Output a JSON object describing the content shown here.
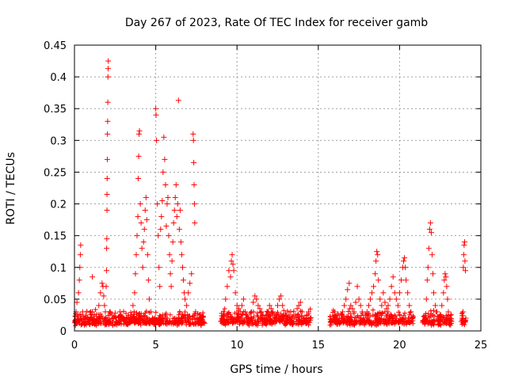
{
  "chart_data": {
    "type": "scatter",
    "title": "Day 267 of 2023, Rate Of TEC Index for receiver gamb",
    "xlabel": "GPS time / hours",
    "ylabel": "ROTI / TECUs",
    "xlim": [
      0,
      25
    ],
    "ylim": [
      0,
      0.45
    ],
    "xticks": [
      "0",
      "5",
      "10",
      "15",
      "20",
      "25"
    ],
    "yticks": [
      "0",
      "0.05",
      "0.1",
      "0.15",
      "0.2",
      "0.25",
      "0.3",
      "0.35",
      "0.4",
      "0.45"
    ],
    "grid": true,
    "legend": "none",
    "marker": "plus",
    "color": "#ff0000",
    "series": [
      {
        "points": [
          [
            0.05,
            0.015
          ],
          [
            0.1,
            0.03
          ],
          [
            0.15,
            0.045
          ],
          [
            0.2,
            0.025
          ],
          [
            0.25,
            0.06
          ],
          [
            0.3,
            0.08
          ],
          [
            0.33,
            0.1
          ],
          [
            0.36,
            0.12
          ],
          [
            0.38,
            0.135
          ],
          [
            0.42,
            0.02
          ],
          [
            0.5,
            0.03
          ],
          [
            0.6,
            0.015
          ],
          [
            0.7,
            0.025
          ],
          [
            0.8,
            0.02
          ],
          [
            0.9,
            0.018
          ],
          [
            1.0,
            0.022
          ],
          [
            1.1,
            0.03
          ],
          [
            1.2,
            0.025
          ],
          [
            1.3,
            0.015
          ],
          [
            1.1,
            0.085
          ],
          [
            1.5,
            0.04
          ],
          [
            1.6,
            0.06
          ],
          [
            1.7,
            0.075
          ],
          [
            1.75,
            0.07
          ],
          [
            1.8,
            0.055
          ],
          [
            1.85,
            0.04
          ],
          [
            1.9,
            0.03
          ],
          [
            1.95,
            0.07
          ],
          [
            1.97,
            0.095
          ],
          [
            1.98,
            0.13
          ],
          [
            1.99,
            0.145
          ],
          [
            2.0,
            0.19
          ],
          [
            2.0,
            0.215
          ],
          [
            2.01,
            0.24
          ],
          [
            2.02,
            0.27
          ],
          [
            2.03,
            0.31
          ],
          [
            2.04,
            0.33
          ],
          [
            2.05,
            0.36
          ],
          [
            2.06,
            0.4
          ],
          [
            2.07,
            0.413
          ],
          [
            2.08,
            0.425
          ],
          [
            2.2,
            0.03
          ],
          [
            2.3,
            0.025
          ],
          [
            2.4,
            0.02
          ],
          [
            2.5,
            0.028
          ],
          [
            2.6,
            0.015
          ],
          [
            2.7,
            0.022
          ],
          [
            2.8,
            0.03
          ],
          [
            2.9,
            0.02
          ],
          [
            3.0,
            0.018
          ],
          [
            3.1,
            0.015
          ],
          [
            3.2,
            0.02
          ],
          [
            3.3,
            0.022
          ],
          [
            3.4,
            0.015
          ],
          [
            3.5,
            0.025
          ],
          [
            3.6,
            0.04
          ],
          [
            3.7,
            0.06
          ],
          [
            3.75,
            0.09
          ],
          [
            3.8,
            0.12
          ],
          [
            3.85,
            0.15
          ],
          [
            3.9,
            0.18
          ],
          [
            3.92,
            0.24
          ],
          [
            3.95,
            0.275
          ],
          [
            3.97,
            0.31
          ],
          [
            4.0,
            0.315
          ],
          [
            4.05,
            0.2
          ],
          [
            4.1,
            0.17
          ],
          [
            4.15,
            0.13
          ],
          [
            4.2,
            0.1
          ],
          [
            4.25,
            0.14
          ],
          [
            4.3,
            0.16
          ],
          [
            4.35,
            0.19
          ],
          [
            4.4,
            0.21
          ],
          [
            4.45,
            0.175
          ],
          [
            4.5,
            0.12
          ],
          [
            4.55,
            0.08
          ],
          [
            4.6,
            0.05
          ],
          [
            4.7,
            0.03
          ],
          [
            4.8,
            0.02
          ],
          [
            4.9,
            0.015
          ],
          [
            5.0,
            0.35
          ],
          [
            5.02,
            0.34
          ],
          [
            5.05,
            0.3
          ],
          [
            5.1,
            0.2
          ],
          [
            5.15,
            0.15
          ],
          [
            5.2,
            0.1
          ],
          [
            5.25,
            0.07
          ],
          [
            5.3,
            0.16
          ],
          [
            5.35,
            0.18
          ],
          [
            5.4,
            0.205
          ],
          [
            5.45,
            0.25
          ],
          [
            5.5,
            0.305
          ],
          [
            5.55,
            0.27
          ],
          [
            5.6,
            0.23
          ],
          [
            5.65,
            0.165
          ],
          [
            5.7,
            0.2
          ],
          [
            5.75,
            0.21
          ],
          [
            5.8,
            0.15
          ],
          [
            5.85,
            0.12
          ],
          [
            5.9,
            0.09
          ],
          [
            5.95,
            0.07
          ],
          [
            6.0,
            0.11
          ],
          [
            6.05,
            0.14
          ],
          [
            6.1,
            0.17
          ],
          [
            6.15,
            0.19
          ],
          [
            6.2,
            0.21
          ],
          [
            6.25,
            0.23
          ],
          [
            6.3,
            0.18
          ],
          [
            6.35,
            0.2
          ],
          [
            6.4,
            0.363
          ],
          [
            6.45,
            0.16
          ],
          [
            6.5,
            0.19
          ],
          [
            6.55,
            0.14
          ],
          [
            6.6,
            0.12
          ],
          [
            6.65,
            0.1
          ],
          [
            6.7,
            0.08
          ],
          [
            6.75,
            0.06
          ],
          [
            6.8,
            0.05
          ],
          [
            6.9,
            0.04
          ],
          [
            7.0,
            0.06
          ],
          [
            7.1,
            0.075
          ],
          [
            7.2,
            0.09
          ],
          [
            7.3,
            0.31
          ],
          [
            7.32,
            0.3
          ],
          [
            7.34,
            0.265
          ],
          [
            7.36,
            0.23
          ],
          [
            7.38,
            0.2
          ],
          [
            7.4,
            0.17
          ],
          [
            7.45,
            0.03
          ],
          [
            7.5,
            0.02
          ],
          [
            7.6,
            0.015
          ],
          [
            7.7,
            0.025
          ],
          [
            7.8,
            0.02
          ],
          [
            7.9,
            0.015
          ],
          [
            8.0,
            0.012
          ],
          [
            9.0,
            0.015
          ],
          [
            9.1,
            0.02
          ],
          [
            9.2,
            0.025
          ],
          [
            9.3,
            0.05
          ],
          [
            9.4,
            0.07
          ],
          [
            9.5,
            0.095
          ],
          [
            9.6,
            0.085
          ],
          [
            9.65,
            0.11
          ],
          [
            9.7,
            0.12
          ],
          [
            9.75,
            0.105
          ],
          [
            9.8,
            0.095
          ],
          [
            9.9,
            0.06
          ],
          [
            10.0,
            0.04
          ],
          [
            10.1,
            0.035
          ],
          [
            10.2,
            0.03
          ],
          [
            10.3,
            0.04
          ],
          [
            10.4,
            0.05
          ],
          [
            10.5,
            0.03
          ],
          [
            10.6,
            0.025
          ],
          [
            10.7,
            0.02
          ],
          [
            10.8,
            0.015
          ],
          [
            10.9,
            0.03
          ],
          [
            11.0,
            0.045
          ],
          [
            11.1,
            0.055
          ],
          [
            11.2,
            0.05
          ],
          [
            11.3,
            0.04
          ],
          [
            11.4,
            0.035
          ],
          [
            11.5,
            0.03
          ],
          [
            11.6,
            0.025
          ],
          [
            11.7,
            0.02
          ],
          [
            11.8,
            0.025
          ],
          [
            11.9,
            0.03
          ],
          [
            12.0,
            0.04
          ],
          [
            12.1,
            0.035
          ],
          [
            12.2,
            0.03
          ],
          [
            12.3,
            0.02
          ],
          [
            12.4,
            0.015
          ],
          [
            12.5,
            0.04
          ],
          [
            12.6,
            0.05
          ],
          [
            12.7,
            0.055
          ],
          [
            12.8,
            0.04
          ],
          [
            12.9,
            0.02
          ],
          [
            13.0,
            0.015
          ],
          [
            13.1,
            0.02
          ],
          [
            13.2,
            0.025
          ],
          [
            13.3,
            0.03
          ],
          [
            13.4,
            0.02
          ],
          [
            13.5,
            0.015
          ],
          [
            13.6,
            0.025
          ],
          [
            13.7,
            0.035
          ],
          [
            13.8,
            0.04
          ],
          [
            13.9,
            0.045
          ],
          [
            14.0,
            0.03
          ],
          [
            14.1,
            0.02
          ],
          [
            14.2,
            0.015
          ],
          [
            14.3,
            0.025
          ],
          [
            14.4,
            0.03
          ],
          [
            14.5,
            0.02
          ],
          [
            15.8,
            0.015
          ],
          [
            15.9,
            0.02
          ],
          [
            16.0,
            0.025
          ],
          [
            16.1,
            0.02
          ],
          [
            16.2,
            0.015
          ],
          [
            16.3,
            0.02
          ],
          [
            16.4,
            0.025
          ],
          [
            16.5,
            0.03
          ],
          [
            16.6,
            0.04
          ],
          [
            16.7,
            0.05
          ],
          [
            16.8,
            0.065
          ],
          [
            16.9,
            0.075
          ],
          [
            17.0,
            0.04
          ],
          [
            17.1,
            0.035
          ],
          [
            17.2,
            0.03
          ],
          [
            17.3,
            0.045
          ],
          [
            17.4,
            0.07
          ],
          [
            17.5,
            0.05
          ],
          [
            17.6,
            0.04
          ],
          [
            17.7,
            0.03
          ],
          [
            17.8,
            0.02
          ],
          [
            17.9,
            0.025
          ],
          [
            18.0,
            0.03
          ],
          [
            18.1,
            0.04
          ],
          [
            18.2,
            0.05
          ],
          [
            18.3,
            0.06
          ],
          [
            18.4,
            0.07
          ],
          [
            18.5,
            0.09
          ],
          [
            18.55,
            0.11
          ],
          [
            18.6,
            0.125
          ],
          [
            18.65,
            0.12
          ],
          [
            18.7,
            0.08
          ],
          [
            18.8,
            0.05
          ],
          [
            18.9,
            0.04
          ],
          [
            19.0,
            0.06
          ],
          [
            19.1,
            0.045
          ],
          [
            19.2,
            0.035
          ],
          [
            19.3,
            0.04
          ],
          [
            19.4,
            0.05
          ],
          [
            19.5,
            0.07
          ],
          [
            19.6,
            0.085
          ],
          [
            19.7,
            0.06
          ],
          [
            19.8,
            0.05
          ],
          [
            19.9,
            0.04
          ],
          [
            20.0,
            0.06
          ],
          [
            20.1,
            0.08
          ],
          [
            20.2,
            0.1
          ],
          [
            20.25,
            0.11
          ],
          [
            20.3,
            0.115
          ],
          [
            20.35,
            0.1
          ],
          [
            20.4,
            0.08
          ],
          [
            20.5,
            0.06
          ],
          [
            20.6,
            0.04
          ],
          [
            20.7,
            0.03
          ],
          [
            20.8,
            0.02
          ],
          [
            21.5,
            0.015
          ],
          [
            21.6,
            0.02
          ],
          [
            21.65,
            0.05
          ],
          [
            21.7,
            0.08
          ],
          [
            21.75,
            0.1
          ],
          [
            21.8,
            0.13
          ],
          [
            21.85,
            0.16
          ],
          [
            21.9,
            0.17
          ],
          [
            21.95,
            0.155
          ],
          [
            22.0,
            0.12
          ],
          [
            22.05,
            0.09
          ],
          [
            22.1,
            0.06
          ],
          [
            22.2,
            0.04
          ],
          [
            22.3,
            0.03
          ],
          [
            22.4,
            0.02
          ],
          [
            22.5,
            0.025
          ],
          [
            22.6,
            0.04
          ],
          [
            22.7,
            0.06
          ],
          [
            22.75,
            0.08
          ],
          [
            22.8,
            0.09
          ],
          [
            22.85,
            0.085
          ],
          [
            22.9,
            0.07
          ],
          [
            22.95,
            0.05
          ],
          [
            23.0,
            0.03
          ],
          [
            23.1,
            0.02
          ],
          [
            23.2,
            0.015
          ],
          [
            23.8,
            0.015
          ],
          [
            23.85,
            0.02
          ],
          [
            23.9,
            0.03
          ],
          [
            23.92,
            0.1
          ],
          [
            23.95,
            0.12
          ],
          [
            23.97,
            0.135
          ],
          [
            24.0,
            0.14
          ],
          [
            24.02,
            0.11
          ],
          [
            24.05,
            0.095
          ],
          [
            24.07,
            0.02
          ]
        ]
      }
    ]
  }
}
